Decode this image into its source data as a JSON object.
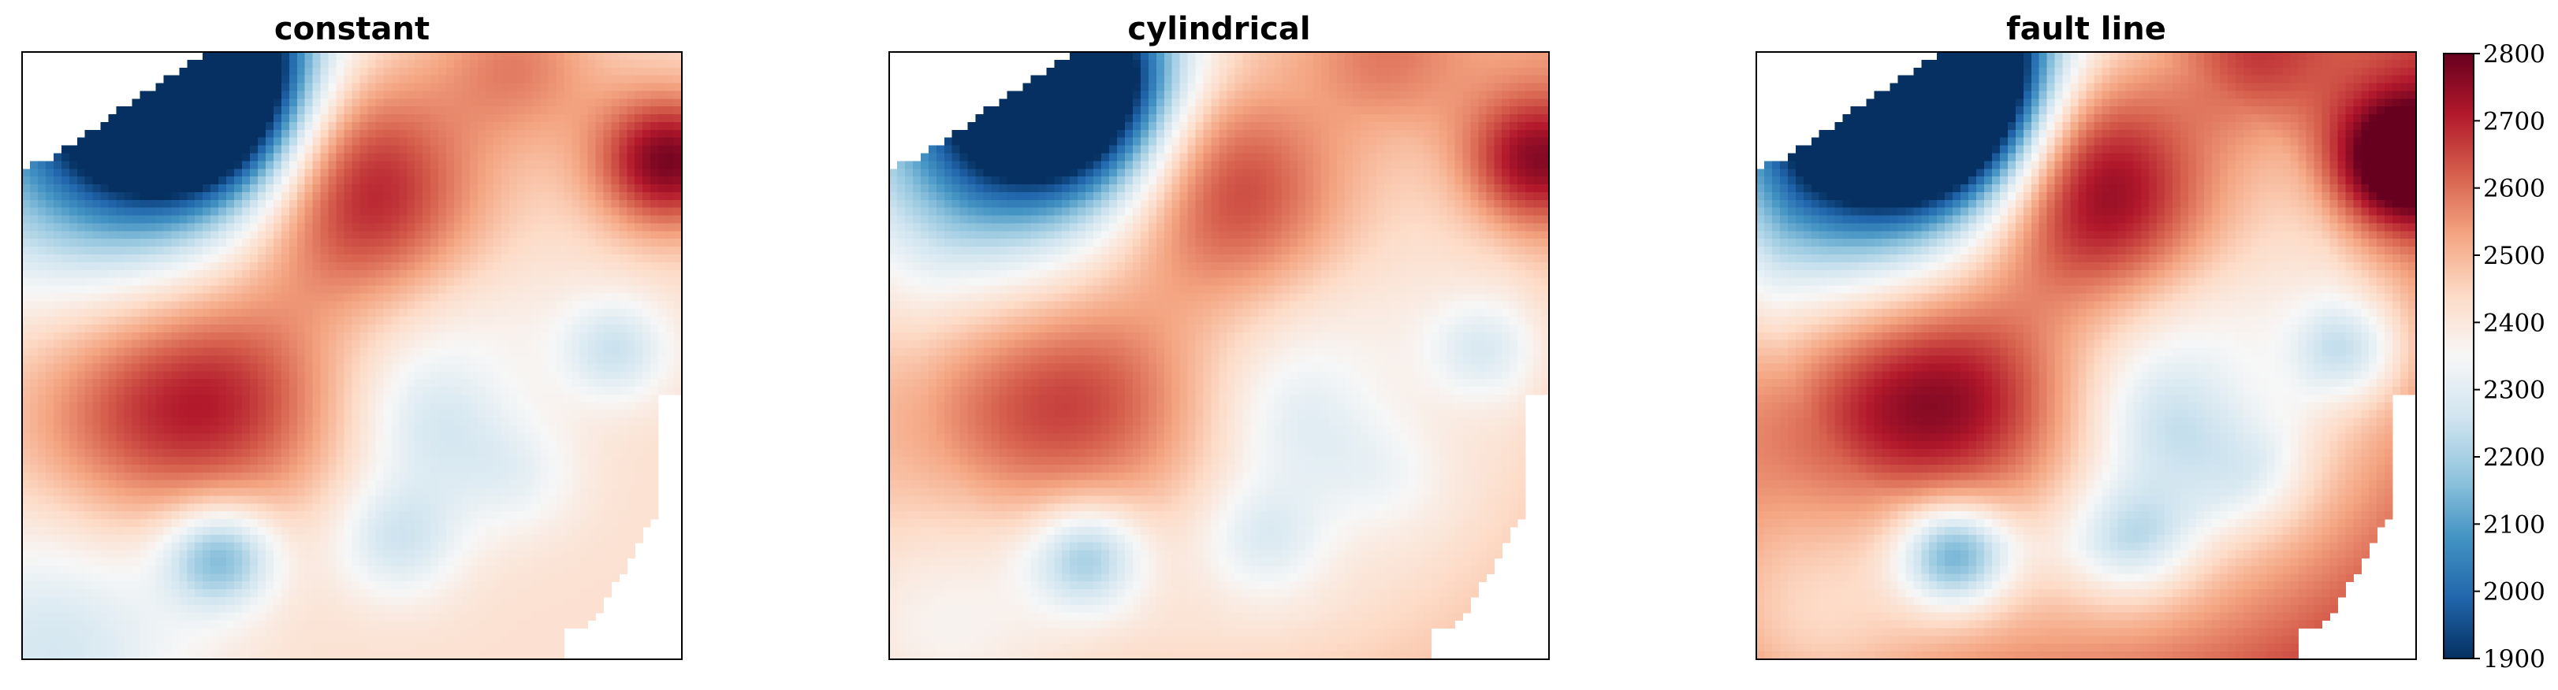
{
  "chart_data": {
    "type": "heatmap",
    "panels": [
      {
        "title": "constant",
        "variant": "constant"
      },
      {
        "title": "cylindrical",
        "variant": "cylindrical"
      },
      {
        "title": "fault line",
        "variant": "fault"
      }
    ],
    "colorbar": {
      "colormap": "RdBu_r",
      "range": [
        1900,
        2800
      ],
      "ticks": [
        1900,
        2000,
        2100,
        2200,
        2300,
        2400,
        2500,
        2600,
        2700,
        2800
      ],
      "tick_labels": [
        "1900",
        "2000",
        "2100",
        "2200",
        "2300",
        "2400",
        "2500",
        "2600",
        "2700",
        "2800"
      ]
    },
    "axes": {
      "x_ticks": false,
      "y_ticks": false,
      "grid": false
    },
    "missing_value_color": "#ffffff"
  }
}
